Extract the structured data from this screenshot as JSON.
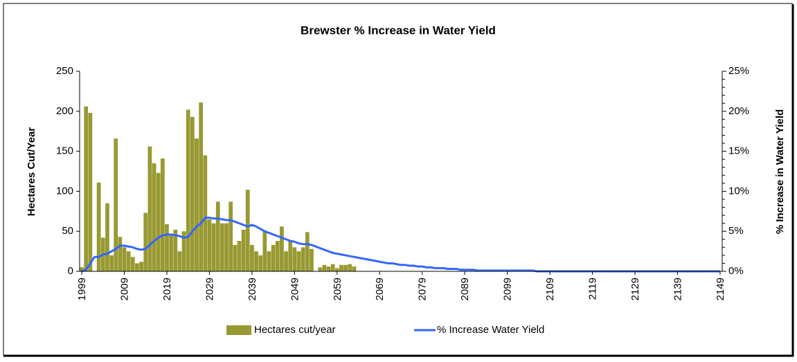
{
  "chart_data": {
    "type": "bar_line",
    "title": "Brewster % Increase in Water Yield",
    "y_label": "Hectares Cut/Year",
    "y2_label": "% Increase in Water Yield",
    "categories": [
      "1999",
      null,
      null,
      null,
      null,
      null,
      null,
      null,
      null,
      null,
      "2009",
      null,
      null,
      null,
      null,
      null,
      null,
      null,
      null,
      null,
      "2019",
      null,
      null,
      null,
      null,
      null,
      null,
      null,
      null,
      null,
      "2029",
      null,
      null,
      null,
      null,
      null,
      null,
      null,
      null,
      null,
      "2039",
      null,
      null,
      null,
      null,
      null,
      null,
      null,
      null,
      null,
      "2049",
      null,
      null,
      null,
      null,
      null,
      null,
      null,
      null,
      null,
      "2059",
      null,
      null,
      null,
      null,
      null,
      null,
      null,
      null,
      null,
      "2069",
      null,
      null,
      null,
      null,
      null,
      null,
      null,
      null,
      null,
      "2079",
      null,
      null,
      null,
      null,
      null,
      null,
      null,
      null,
      null,
      "2089",
      null,
      null,
      null,
      null,
      null,
      null,
      null,
      null,
      null,
      "2099",
      null,
      null,
      null,
      null,
      null,
      null,
      null,
      null,
      null,
      "2109",
      null,
      null,
      null,
      null,
      null,
      null,
      null,
      null,
      null,
      "2119",
      null,
      null,
      null,
      null,
      null,
      null,
      null,
      null,
      null,
      "2129",
      null,
      null,
      null,
      null,
      null,
      null,
      null,
      null,
      null,
      "2139",
      null,
      null,
      null,
      null,
      null,
      null,
      null,
      null,
      null,
      "2149"
    ],
    "series": [
      {
        "name": "Hectares cut/year",
        "type": "bar",
        "color": "#999933",
        "values": [
          5,
          206,
          198,
          0,
          111,
          42,
          85,
          20,
          166,
          43,
          30,
          25,
          18,
          10,
          12,
          73,
          156,
          135,
          123,
          141,
          59,
          45,
          52,
          25,
          50,
          202,
          193,
          166,
          211,
          145,
          65,
          60,
          87,
          60,
          60,
          87,
          33,
          38,
          52,
          102,
          33,
          25,
          20,
          50,
          25,
          33,
          38,
          56,
          25,
          38,
          30,
          25,
          30,
          49,
          28,
          0,
          5,
          8,
          6,
          9,
          4,
          8,
          8,
          9,
          6,
          0,
          0,
          0,
          0,
          0,
          0,
          0,
          0,
          0,
          0,
          0,
          0,
          0,
          0,
          0,
          0,
          0,
          0,
          0,
          0,
          0,
          0,
          0,
          0,
          0,
          0,
          0,
          0,
          0,
          0,
          0,
          0,
          0,
          0,
          0,
          0,
          0,
          0,
          0,
          0,
          0,
          0,
          0,
          0,
          0,
          0,
          0,
          0,
          0,
          0,
          0,
          0,
          0,
          0,
          0,
          0,
          0,
          0,
          0,
          0,
          0,
          0,
          0,
          0,
          0,
          0,
          0,
          0,
          0,
          0,
          0,
          0,
          0,
          0,
          0,
          0,
          0,
          0,
          0,
          0,
          0,
          0,
          0,
          0,
          0,
          0
        ]
      },
      {
        "name": "% Increase Water Yield",
        "type": "line",
        "axis": "y2",
        "color": "#3366ff",
        "values": [
          0,
          0.2,
          1,
          1.8,
          1.8,
          2.1,
          2.2,
          2.5,
          2.8,
          3.2,
          3.2,
          3.1,
          3.0,
          2.8,
          2.7,
          2.8,
          3.3,
          3.8,
          4.2,
          4.5,
          4.6,
          4.6,
          4.5,
          4.4,
          4.2,
          4.3,
          5.0,
          5.6,
          6.0,
          6.7,
          6.7,
          6.6,
          6.6,
          6.5,
          6.4,
          6.4,
          6.2,
          6.0,
          5.8,
          5.6,
          5.8,
          5.6,
          5.3,
          5.0,
          4.8,
          4.6,
          4.4,
          4.2,
          4.0,
          3.8,
          3.7,
          3.5,
          3.4,
          3.4,
          3.3,
          3.1,
          2.9,
          2.7,
          2.5,
          2.3,
          2.2,
          2.1,
          2.0,
          1.9,
          1.8,
          1.7,
          1.6,
          1.5,
          1.4,
          1.3,
          1.2,
          1.1,
          1.0,
          1.0,
          0.9,
          0.8,
          0.8,
          0.7,
          0.7,
          0.6,
          0.6,
          0.5,
          0.5,
          0.4,
          0.4,
          0.4,
          0.3,
          0.3,
          0.3,
          0.2,
          0.2,
          0.2,
          0.2,
          0.1,
          0.1,
          0.1,
          0.1,
          0.1,
          0.1,
          0.1,
          0.1,
          0.1,
          0.1,
          0.1,
          0.1,
          0.1,
          0.1,
          0,
          0,
          0,
          0,
          0,
          0,
          0,
          0,
          0,
          0,
          0,
          0,
          0,
          0,
          0,
          0,
          0,
          0,
          0,
          0,
          0,
          0,
          0,
          0,
          0,
          0,
          0,
          0,
          0,
          0,
          0,
          0,
          0,
          0,
          0,
          0,
          0,
          0,
          0,
          0,
          0,
          0,
          0,
          0
        ]
      }
    ],
    "ylim": [
      0,
      250
    ],
    "yticks": [
      0,
      50,
      100,
      150,
      200,
      250
    ],
    "y2lim": [
      0,
      25
    ],
    "y2ticks": [
      {
        "value": 0,
        "label": "0%"
      },
      {
        "value": 5,
        "label": "5%"
      },
      {
        "value": 10,
        "label": "10%"
      },
      {
        "value": 15,
        "label": "15%"
      },
      {
        "value": 20,
        "label": "20%"
      },
      {
        "value": 25,
        "label": "25%"
      }
    ],
    "grid": false,
    "legend": "bottom"
  }
}
